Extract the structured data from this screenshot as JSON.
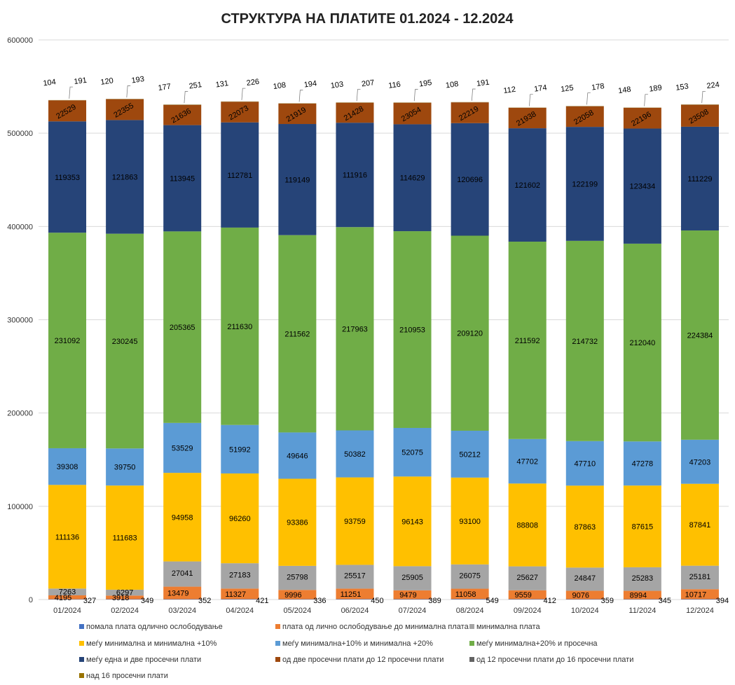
{
  "chart_data": {
    "type": "bar",
    "stacked": true,
    "title": "СТРУКТУРА НА ПЛАТИТЕ 01.2024 - 12.2024",
    "xlabel": "",
    "ylabel": "",
    "ylim": [
      0,
      600000
    ],
    "yticks": [
      "0",
      "100000",
      "200000",
      "300000",
      "400000",
      "500000",
      "600000"
    ],
    "grid": true,
    "legend_position": "bottom",
    "categories": [
      "01/2024",
      "02/2024",
      "03/2024",
      "04/2024",
      "05/2024",
      "06/2024",
      "07/2024",
      "08/2024",
      "09/2024",
      "10/2024",
      "11/2024",
      "12/2024"
    ],
    "series": [
      {
        "name": "помала плата одлично ослободување",
        "color": "#4472C4",
        "values": [
          327,
          349,
          352,
          421,
          336,
          450,
          389,
          549,
          412,
          359,
          345,
          394
        ]
      },
      {
        "name": "плата од лично ослободување до минимална плата",
        "color": "#ED7D31",
        "values": [
          4195,
          3918,
          13479,
          11327,
          9996,
          11251,
          9479,
          11058,
          9559,
          9076,
          8994,
          10717
        ]
      },
      {
        "name": "минимална плата",
        "color": "#A5A5A5",
        "values": [
          7263,
          6297,
          27041,
          27183,
          25798,
          25517,
          25905,
          26075,
          25627,
          24847,
          25283,
          25181
        ]
      },
      {
        "name": "меѓу минимална  и минимална +10%",
        "color": "#FFC000",
        "values": [
          111136,
          111683,
          94958,
          96260,
          93386,
          93759,
          96143,
          93100,
          88808,
          87863,
          87615,
          87841
        ]
      },
      {
        "name": "меѓу минимална+10% и  минимална +20%",
        "color": "#5B9BD5",
        "values": [
          39308,
          39750,
          53529,
          51992,
          49646,
          50382,
          52075,
          50212,
          47702,
          47710,
          47278,
          47203
        ]
      },
      {
        "name": "меѓу минимална+20% и  просечна",
        "color": "#70AD47",
        "values": [
          231092,
          230245,
          205365,
          211630,
          211562,
          217963,
          210953,
          209120,
          211592,
          214732,
          212040,
          224384
        ]
      },
      {
        "name": "меѓу една и две просечни плати",
        "color": "#264478",
        "values": [
          119353,
          121863,
          113945,
          112781,
          119149,
          111916,
          114629,
          120696,
          121602,
          122199,
          123434,
          111229
        ]
      },
      {
        "name": "од две просечни плати до 12 просечни плати",
        "color": "#9E480E",
        "values": [
          22529,
          22355,
          21636,
          22073,
          21919,
          21428,
          23054,
          22219,
          21938,
          22058,
          22196,
          23508
        ]
      },
      {
        "name": "од 12 просечни плати до 16 просечни плати",
        "color": "#636363",
        "values": [
          104,
          120,
          177,
          131,
          108,
          103,
          116,
          108,
          112,
          125,
          148,
          153
        ]
      },
      {
        "name": "над 16 просечни плати",
        "color": "#997300",
        "values": [
          191,
          193,
          251,
          226,
          194,
          207,
          195,
          191,
          174,
          178,
          189,
          224
        ]
      }
    ]
  }
}
